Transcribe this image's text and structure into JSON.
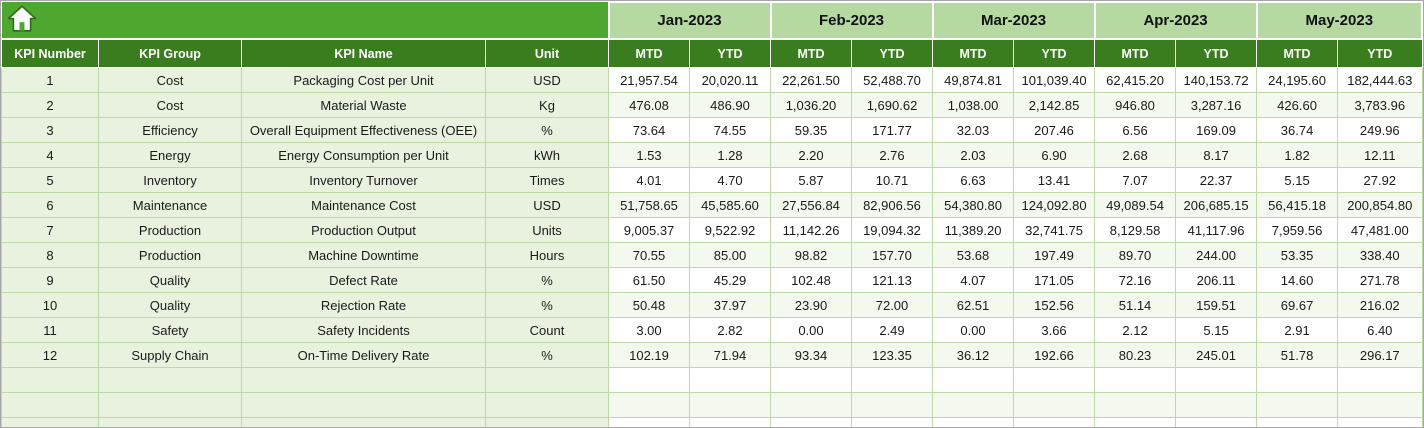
{
  "table": {
    "months": [
      "Jan-2023",
      "Feb-2023",
      "Mar-2023",
      "Apr-2023",
      "May-2023"
    ],
    "sub_headers": [
      "MTD",
      "YTD"
    ],
    "left_headers": [
      "KPI Number",
      "KPI Group",
      "KPI Name",
      "Unit"
    ],
    "rows": [
      {
        "number": "1",
        "group": "Cost",
        "name": "Packaging Cost per Unit",
        "unit": "USD",
        "values": [
          "21,957.54",
          "20,020.11",
          "22,261.50",
          "52,488.70",
          "49,874.81",
          "101,039.40",
          "62,415.20",
          "140,153.72",
          "24,195.60",
          "182,444.63"
        ]
      },
      {
        "number": "2",
        "group": "Cost",
        "name": "Material Waste",
        "unit": "Kg",
        "values": [
          "476.08",
          "486.90",
          "1,036.20",
          "1,690.62",
          "1,038.00",
          "2,142.85",
          "946.80",
          "3,287.16",
          "426.60",
          "3,783.96"
        ]
      },
      {
        "number": "3",
        "group": "Efficiency",
        "name": "Overall Equipment Effectiveness (OEE)",
        "unit": "%",
        "values": [
          "73.64",
          "74.55",
          "59.35",
          "171.77",
          "32.03",
          "207.46",
          "6.56",
          "169.09",
          "36.74",
          "249.96"
        ]
      },
      {
        "number": "4",
        "group": "Energy",
        "name": "Energy Consumption per Unit",
        "unit": "kWh",
        "values": [
          "1.53",
          "1.28",
          "2.20",
          "2.76",
          "2.03",
          "6.90",
          "2.68",
          "8.17",
          "1.82",
          "12.11"
        ]
      },
      {
        "number": "5",
        "group": "Inventory",
        "name": "Inventory Turnover",
        "unit": "Times",
        "values": [
          "4.01",
          "4.70",
          "5.87",
          "10.71",
          "6.63",
          "13.41",
          "7.07",
          "22.37",
          "5.15",
          "27.92"
        ]
      },
      {
        "number": "6",
        "group": "Maintenance",
        "name": "Maintenance Cost",
        "unit": "USD",
        "values": [
          "51,758.65",
          "45,585.60",
          "27,556.84",
          "82,906.56",
          "54,380.80",
          "124,092.80",
          "49,089.54",
          "206,685.15",
          "56,415.18",
          "200,854.80"
        ]
      },
      {
        "number": "7",
        "group": "Production",
        "name": "Production Output",
        "unit": "Units",
        "values": [
          "9,005.37",
          "9,522.92",
          "11,142.26",
          "19,094.32",
          "11,389.20",
          "32,741.75",
          "8,129.58",
          "41,117.96",
          "7,959.56",
          "47,481.00"
        ]
      },
      {
        "number": "8",
        "group": "Production",
        "name": "Machine Downtime",
        "unit": "Hours",
        "values": [
          "70.55",
          "85.00",
          "98.82",
          "157.70",
          "53.68",
          "197.49",
          "89.70",
          "244.00",
          "53.35",
          "338.40"
        ]
      },
      {
        "number": "9",
        "group": "Quality",
        "name": "Defect Rate",
        "unit": "%",
        "values": [
          "61.50",
          "45.29",
          "102.48",
          "121.13",
          "4.07",
          "171.05",
          "72.16",
          "206.11",
          "14.60",
          "271.78"
        ]
      },
      {
        "number": "10",
        "group": "Quality",
        "name": "Rejection Rate",
        "unit": "%",
        "values": [
          "50.48",
          "37.97",
          "23.90",
          "72.00",
          "62.51",
          "152.56",
          "51.14",
          "159.51",
          "69.67",
          "216.02"
        ]
      },
      {
        "number": "11",
        "group": "Safety",
        "name": "Safety Incidents",
        "unit": "Count",
        "values": [
          "3.00",
          "2.82",
          "0.00",
          "2.49",
          "0.00",
          "3.66",
          "2.12",
          "5.15",
          "2.91",
          "6.40"
        ]
      },
      {
        "number": "12",
        "group": "Supply Chain",
        "name": "On-Time Delivery Rate",
        "unit": "%",
        "values": [
          "102.19",
          "71.94",
          "93.34",
          "123.35",
          "36.12",
          "192.66",
          "80.23",
          "245.01",
          "51.78",
          "296.17"
        ]
      }
    ],
    "empty_row_count": 3
  },
  "colors": {
    "corner_green": "#4ea72e",
    "month_band_green": "#b6d9a2",
    "header_dark_green": "#3a7d1f",
    "label_cell_green": "#e8f2de",
    "grid_line_green": "#bcd9a6"
  },
  "icons": {
    "home": "home-icon"
  }
}
